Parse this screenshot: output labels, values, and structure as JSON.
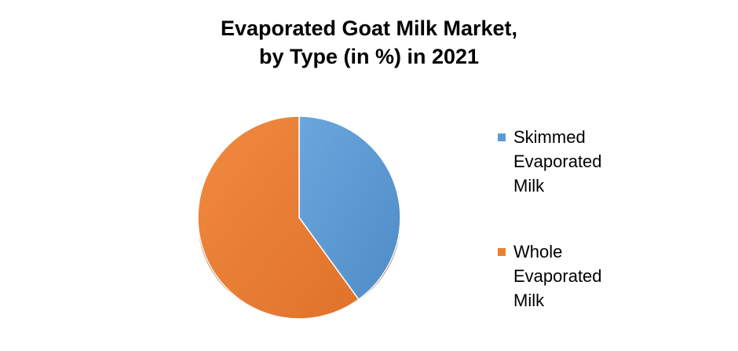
{
  "chart_data": {
    "type": "pie",
    "title_lines": [
      "Evaporated Goat Milk Market,",
      "by Type (in %) in 2021"
    ],
    "categories": [
      "Skimmed Evaporated Milk",
      "Whole Evaporated Milk"
    ],
    "values": [
      40,
      60
    ],
    "colors": [
      "#5b9bd5",
      "#ed7d31"
    ],
    "legend_position": "right"
  }
}
